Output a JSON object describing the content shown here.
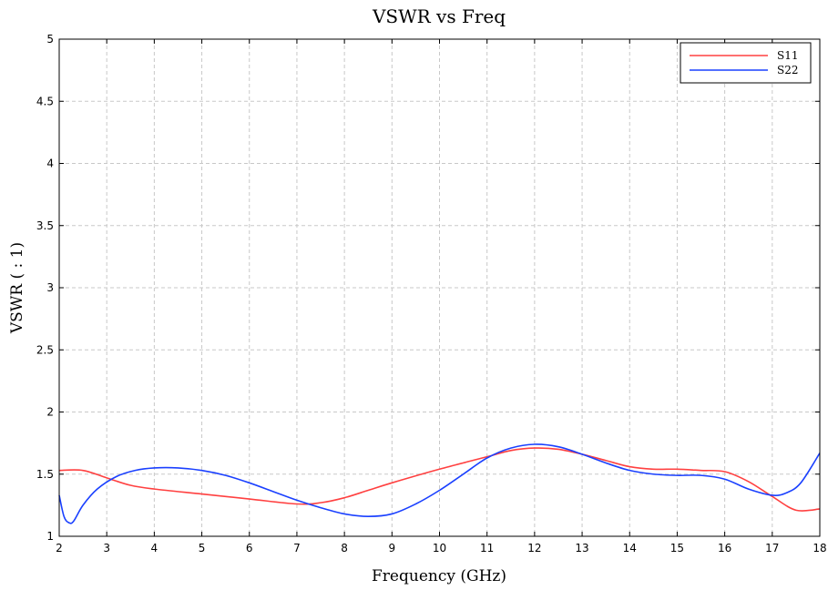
{
  "chart_data": {
    "type": "line",
    "title": "VSWR vs Freq",
    "xlabel": "Frequency (GHz)",
    "ylabel": "VSWR ( : 1)",
    "xlim": [
      2,
      18
    ],
    "ylim": [
      1,
      5
    ],
    "x_ticks": [
      2,
      3,
      4,
      5,
      6,
      7,
      8,
      9,
      10,
      11,
      12,
      13,
      14,
      15,
      16,
      17,
      18
    ],
    "x_tick_labels": [
      "2",
      "3",
      "4",
      "5",
      "6",
      "7",
      "8",
      "9",
      "10",
      "11",
      "12",
      "13",
      "14",
      "15",
      "16",
      "17",
      "18"
    ],
    "y_ticks": [
      1,
      1.5,
      2,
      2.5,
      3,
      3.5,
      4,
      4.5,
      5
    ],
    "y_tick_labels": [
      "1",
      "1.5",
      "2",
      "2.5",
      "3",
      "3.5",
      "4",
      "4.5",
      "5"
    ],
    "grid": true,
    "legend_position": "top-right",
    "series": [
      {
        "name": "S11",
        "color": "#ff4040",
        "x": [
          2,
          2.5,
          3,
          3.5,
          4,
          5,
          6,
          7,
          7.5,
          8,
          8.5,
          9,
          10,
          11,
          11.5,
          12,
          12.5,
          13,
          13.5,
          14,
          14.5,
          15,
          15.5,
          16,
          16.5,
          17,
          17.5,
          18
        ],
        "y": [
          1.53,
          1.53,
          1.47,
          1.41,
          1.38,
          1.34,
          1.3,
          1.26,
          1.27,
          1.31,
          1.37,
          1.43,
          1.54,
          1.64,
          1.69,
          1.71,
          1.7,
          1.66,
          1.61,
          1.56,
          1.54,
          1.54,
          1.53,
          1.52,
          1.44,
          1.32,
          1.21,
          1.22
        ]
      },
      {
        "name": "S22",
        "color": "#1a40ff",
        "x": [
          2,
          2.1,
          2.2,
          2.3,
          2.5,
          2.8,
          3.2,
          3.6,
          4,
          4.5,
          5,
          5.5,
          6,
          6.5,
          7,
          7.5,
          8,
          8.5,
          9,
          9.5,
          10,
          10.5,
          11,
          11.5,
          12,
          12.5,
          13,
          13.5,
          14,
          14.5,
          15,
          15.5,
          16,
          16.5,
          17,
          17.3,
          17.6,
          18
        ],
        "y": [
          1.33,
          1.16,
          1.11,
          1.12,
          1.25,
          1.38,
          1.48,
          1.53,
          1.55,
          1.55,
          1.53,
          1.49,
          1.43,
          1.36,
          1.29,
          1.23,
          1.18,
          1.16,
          1.18,
          1.26,
          1.37,
          1.5,
          1.63,
          1.71,
          1.74,
          1.72,
          1.66,
          1.59,
          1.53,
          1.5,
          1.49,
          1.49,
          1.46,
          1.38,
          1.33,
          1.35,
          1.43,
          1.67
        ]
      }
    ]
  }
}
